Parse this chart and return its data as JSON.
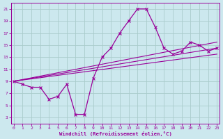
{
  "xlabel": "Windchill (Refroidissement éolien,°C)",
  "background_color": "#cce8ee",
  "grid_color": "#aacccc",
  "line_color": "#990099",
  "xlim": [
    -0.3,
    23.3
  ],
  "ylim": [
    2.0,
    22.0
  ],
  "yticks": [
    3,
    5,
    7,
    9,
    11,
    13,
    15,
    17,
    19,
    21
  ],
  "xticks": [
    0,
    1,
    2,
    3,
    4,
    5,
    6,
    7,
    8,
    9,
    10,
    11,
    12,
    13,
    14,
    15,
    16,
    17,
    18,
    19,
    20,
    21,
    22,
    23
  ],
  "main_line": {
    "x": [
      0,
      1,
      2,
      3,
      4,
      5,
      6,
      7,
      8,
      9,
      10,
      11,
      12,
      13,
      14,
      15,
      16,
      17,
      18,
      19,
      20,
      21,
      22,
      23
    ],
    "y": [
      9,
      8.5,
      8.0,
      8.0,
      6.0,
      6.5,
      8.5,
      3.5,
      3.5,
      9.5,
      13.0,
      14.5,
      17.0,
      19.0,
      21.0,
      21.0,
      18.0,
      14.5,
      13.5,
      14.0,
      15.5,
      15.0,
      14.0,
      14.5
    ]
  },
  "trend_lines": [
    {
      "x": [
        0,
        23
      ],
      "y": [
        9,
        15.5
      ]
    },
    {
      "x": [
        0,
        23
      ],
      "y": [
        9,
        14.5
      ]
    },
    {
      "x": [
        0,
        23
      ],
      "y": [
        9,
        13.5
      ]
    }
  ]
}
